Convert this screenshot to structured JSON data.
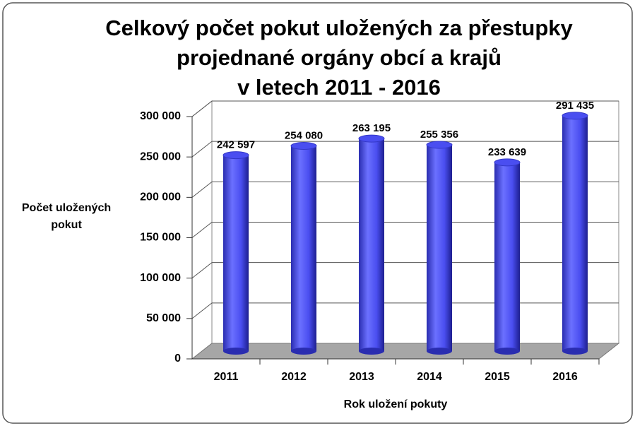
{
  "chart_data": {
    "type": "bar3d",
    "title": [
      "Celkový počet pokut uložených za přestupky",
      "projednané orgány obcí a krajů",
      "v letech 2011 - 2016"
    ],
    "y_label": "Počet uložených pokut",
    "x_label": "Rok uložení pokuty",
    "categories": [
      "2011",
      "2012",
      "2013",
      "2014",
      "2015",
      "2016"
    ],
    "values": [
      242597,
      254080,
      263195,
      255356,
      233639,
      291435
    ],
    "value_labels": [
      "242 597",
      "254 080",
      "263 195",
      "255 356",
      "233 639",
      "291 435"
    ],
    "color": "#4a4ef0",
    "ylim": [
      0,
      300000
    ],
    "yticks": [
      {
        "value": 0,
        "label": "0"
      },
      {
        "value": 50000,
        "label": "50 000"
      },
      {
        "value": 100000,
        "label": "100 000"
      },
      {
        "value": 150000,
        "label": "150 000"
      },
      {
        "value": 200000,
        "label": "200 000"
      },
      {
        "value": 250000,
        "label": "250 000"
      },
      {
        "value": 300000,
        "label": "300 000"
      }
    ],
    "grid": true
  }
}
